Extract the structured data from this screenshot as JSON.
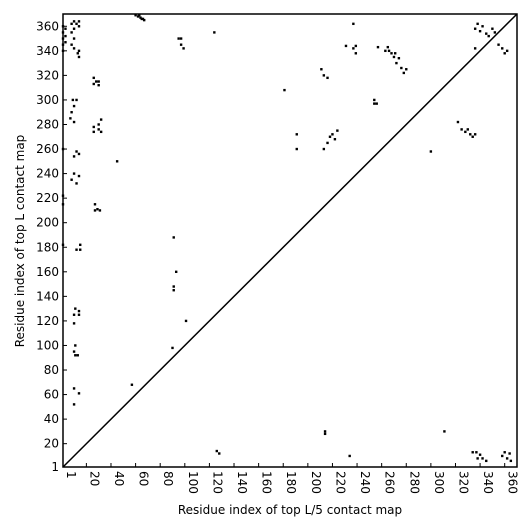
{
  "chart_data": {
    "type": "scatter",
    "xlabel": "Residue index of top L/5 contact map",
    "ylabel": "Residue index of top L contact map",
    "color": "#000000",
    "x": [
      1,
      1,
      1,
      1,
      3,
      3,
      3,
      1,
      8,
      10,
      10,
      12,
      14,
      14,
      8,
      10,
      13,
      14,
      8,
      10,
      14,
      60,
      62,
      64,
      66,
      67,
      63,
      65,
      95,
      97,
      97,
      99,
      124,
      9,
      12,
      10,
      8,
      7,
      10,
      1,
      12,
      14,
      10,
      26,
      28,
      30,
      26,
      30,
      26,
      26,
      30,
      32,
      30,
      32,
      10,
      14,
      8,
      12,
      1,
      1,
      27,
      27,
      29,
      31,
      45,
      1,
      12,
      15,
      15,
      11,
      14,
      14,
      10,
      10,
      11,
      11,
      13,
      10,
      10,
      14,
      10,
      57,
      91,
      91,
      91,
      93,
      101,
      90,
      181,
      191,
      191,
      211,
      213,
      216,
      213,
      216,
      218,
      220,
      222,
      224,
      231,
      237,
      239,
      239,
      237,
      254,
      256,
      254,
      257,
      263,
      265,
      268,
      270,
      272,
      274,
      276,
      278,
      280,
      266,
      271,
      300,
      322,
      325,
      328,
      330,
      332,
      334,
      336,
      336,
      338,
      340,
      342,
      345,
      347,
      350,
      352,
      336,
      355,
      358,
      360,
      362,
      126,
      128,
      214,
      214,
      234,
      311,
      334,
      337,
      340,
      342,
      345,
      338,
      358,
      360,
      362,
      364,
      365
    ],
    "y": [
      360,
      355,
      350,
      345,
      358,
      352,
      347,
      340,
      362,
      364,
      358,
      362,
      364,
      360,
      355,
      350,
      338,
      335,
      345,
      342,
      340,
      369,
      368,
      367,
      366,
      365,
      369,
      366,
      350,
      350,
      345,
      342,
      355,
      300,
      300,
      295,
      290,
      285,
      282,
      260,
      258,
      256,
      254,
      318,
      315,
      315,
      313,
      312,
      278,
      274,
      280,
      284,
      276,
      274,
      240,
      238,
      235,
      232,
      222,
      215,
      215,
      210,
      211,
      210,
      250,
      182,
      178,
      182,
      178,
      130,
      128,
      125,
      125,
      118,
      100,
      92,
      92,
      95,
      65,
      61,
      52,
      68,
      188,
      148,
      145,
      160,
      120,
      98,
      308,
      272,
      260,
      325,
      320,
      318,
      260,
      265,
      270,
      272,
      268,
      275,
      344,
      342,
      338,
      344,
      362,
      300,
      297,
      297,
      343,
      340,
      343,
      338,
      335,
      330,
      334,
      326,
      322,
      325,
      340,
      338,
      258,
      282,
      276,
      274,
      276,
      272,
      270,
      272,
      358,
      362,
      356,
      360,
      354,
      352,
      358,
      355,
      342,
      345,
      342,
      338,
      340,
      14,
      12,
      30,
      28,
      10,
      30,
      13,
      13,
      11,
      8,
      6,
      8,
      10,
      13,
      8,
      12,
      6
    ],
    "xlim": [
      1,
      370
    ],
    "ylim": [
      1,
      370
    ],
    "xticks": [
      1,
      20,
      40,
      60,
      80,
      100,
      120,
      140,
      160,
      180,
      200,
      220,
      240,
      260,
      280,
      300,
      320,
      340,
      360
    ],
    "yticks": [
      1,
      20,
      40,
      60,
      80,
      100,
      120,
      140,
      160,
      180,
      200,
      220,
      240,
      260,
      280,
      300,
      320,
      340,
      360
    ]
  }
}
